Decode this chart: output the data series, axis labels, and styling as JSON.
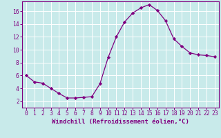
{
  "x": [
    0,
    1,
    2,
    3,
    4,
    5,
    6,
    7,
    8,
    9,
    10,
    11,
    12,
    13,
    14,
    15,
    16,
    17,
    18,
    19,
    20,
    21,
    22,
    23
  ],
  "y": [
    6,
    5,
    4.8,
    4,
    3.2,
    2.5,
    2.5,
    2.6,
    2.7,
    4.7,
    8.8,
    12.0,
    14.3,
    15.7,
    16.5,
    17.0,
    16.1,
    14.5,
    11.7,
    10.5,
    9.5,
    9.2,
    9.1,
    8.9
  ],
  "line_color": "#800080",
  "marker": "D",
  "marker_size": 2.2,
  "background_color": "#c8eaea",
  "grid_color": "#ffffff",
  "xlabel": "Windchill (Refroidissement éolien,°C)",
  "xlabel_fontsize": 6.5,
  "tick_fontsize": 5.8,
  "xlim": [
    -0.5,
    23.5
  ],
  "ylim": [
    1.0,
    17.5
  ],
  "yticks": [
    2,
    4,
    6,
    8,
    10,
    12,
    14,
    16
  ],
  "xticks": [
    0,
    1,
    2,
    3,
    4,
    5,
    6,
    7,
    8,
    9,
    10,
    11,
    12,
    13,
    14,
    15,
    16,
    17,
    18,
    19,
    20,
    21,
    22,
    23
  ]
}
